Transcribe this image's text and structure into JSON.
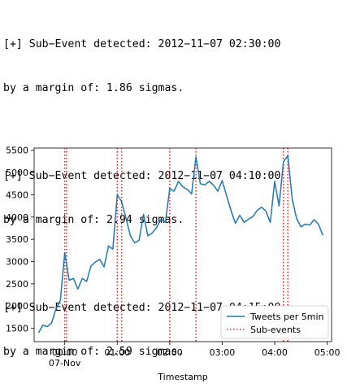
{
  "log": [
    {
      "detected": "[+] Sub−Event detected: 2012−11−07 02:30:00",
      "margin": "by a margin of: 1.86 sigmas."
    },
    {
      "detected": "[+] Sub−Event detected: 2012−11−07 04:10:00",
      "margin": "by a margin of: 2.94 sigmas."
    },
    {
      "detected": "[+] Sub−Event detected: 2012−11−07 04:15:00",
      "margin": "by a margin of: 2.59 sigmas."
    }
  ],
  "colors": {
    "series": "#1f77b4",
    "subevents": "#d62728",
    "axis": "#000000"
  },
  "chart_data": {
    "type": "line",
    "title": "",
    "xlabel": "Timestamp",
    "ylabel": "",
    "xlim_minutes": [
      -35,
      305
    ],
    "ylim": [
      1200,
      5550
    ],
    "grid": false,
    "legend_position": "lower-right",
    "x_tick_labels": [
      {
        "minute": 0,
        "label": "00:00",
        "sublabel": "07-Nov"
      },
      {
        "minute": 60,
        "label": "01:00",
        "sublabel": ""
      },
      {
        "minute": 120,
        "label": "02:00",
        "sublabel": ""
      },
      {
        "minute": 180,
        "label": "03:00",
        "sublabel": ""
      },
      {
        "minute": 240,
        "label": "04:00",
        "sublabel": ""
      },
      {
        "minute": 300,
        "label": "05:00",
        "sublabel": ""
      }
    ],
    "y_ticks": [
      1500,
      2000,
      2500,
      3000,
      3500,
      4000,
      4500,
      5000,
      5500
    ],
    "series": [
      {
        "name": "Tweets per 5min",
        "style": "solid",
        "x_minutes": [
          -30,
          -25,
          -20,
          -15,
          -10,
          -5,
          0,
          5,
          10,
          15,
          20,
          25,
          30,
          35,
          40,
          45,
          50,
          55,
          60,
          65,
          70,
          75,
          80,
          85,
          90,
          95,
          100,
          105,
          110,
          115,
          120,
          125,
          130,
          135,
          140,
          145,
          150,
          155,
          160,
          165,
          170,
          175,
          180,
          185,
          190,
          195,
          200,
          205,
          210,
          215,
          220,
          225,
          230,
          235,
          240,
          245,
          250,
          255,
          260,
          265,
          270,
          275,
          280,
          285,
          290,
          295
        ],
        "values": [
          1400,
          1570,
          1540,
          1620,
          1940,
          2130,
          3200,
          2580,
          2620,
          2380,
          2620,
          2550,
          2900,
          2990,
          3050,
          2880,
          3350,
          3280,
          4500,
          4350,
          3980,
          3580,
          3420,
          3480,
          4060,
          3580,
          3640,
          3760,
          3950,
          3880,
          4640,
          4580,
          4800,
          4680,
          4620,
          4520,
          5350,
          4750,
          4720,
          4800,
          4720,
          4580,
          4820,
          4480,
          4150,
          3860,
          4040,
          3880,
          3950,
          4010,
          4150,
          4220,
          4130,
          3880,
          4800,
          4250,
          5240,
          5380,
          4400,
          3970,
          3780,
          3840,
          3820,
          3940,
          3840,
          3590
        ]
      },
      {
        "name": "Sub-events",
        "style": "dotted",
        "lines_minutes": [
          0,
          2,
          60,
          65,
          120,
          150,
          250,
          255
        ]
      }
    ]
  }
}
